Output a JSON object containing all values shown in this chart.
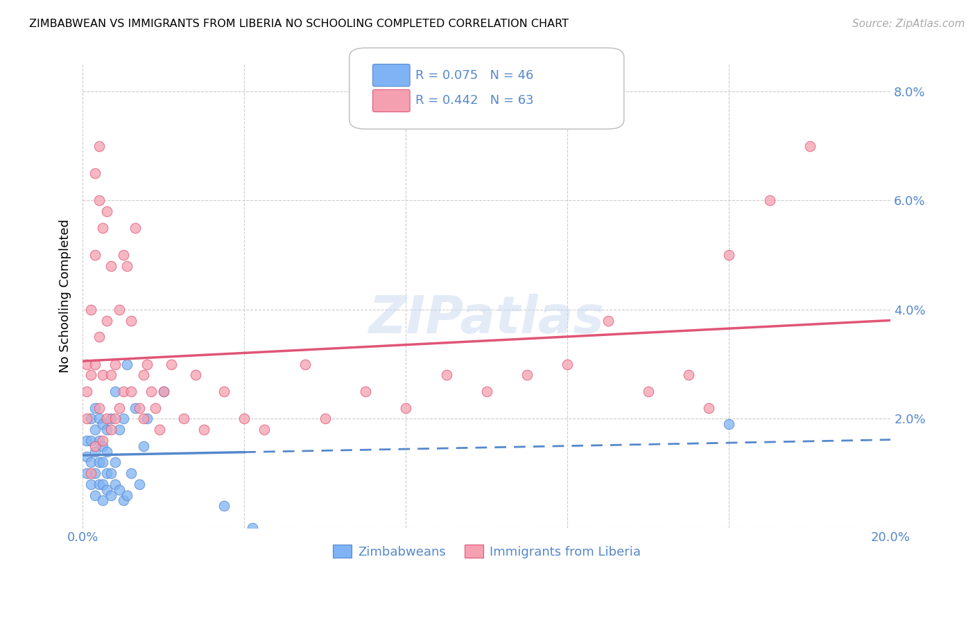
{
  "title": "ZIMBABWEAN VS IMMIGRANTS FROM LIBERIA NO SCHOOLING COMPLETED CORRELATION CHART",
  "source": "Source: ZipAtlas.com",
  "ylabel": "No Schooling Completed",
  "xlim": [
    0.0,
    0.2
  ],
  "ylim": [
    0.0,
    0.085
  ],
  "xtick_vals": [
    0.0,
    0.04,
    0.08,
    0.12,
    0.16,
    0.2
  ],
  "xticklabels": [
    "0.0%",
    "",
    "",
    "",
    "",
    "20.0%"
  ],
  "ytick_vals": [
    0.0,
    0.02,
    0.04,
    0.06,
    0.08
  ],
  "yticklabels": [
    "",
    "2.0%",
    "4.0%",
    "6.0%",
    "8.0%"
  ],
  "legend_r1": "0.075",
  "legend_n1": "46",
  "legend_r2": "0.442",
  "legend_n2": "63",
  "color_zimbabwe": "#7fb3f5",
  "color_liberia": "#f5a0b0",
  "color_trendline_zimbabwe": "#5588cc",
  "color_trendline_liberia": "#e05575",
  "watermark_text": "ZIPatlas",
  "background_color": "#ffffff",
  "grid_color": "#cccccc",
  "tick_color": "#5588cc",
  "zimbabwe_x": [
    0.001,
    0.001,
    0.001,
    0.002,
    0.002,
    0.002,
    0.002,
    0.003,
    0.003,
    0.003,
    0.003,
    0.003,
    0.004,
    0.004,
    0.004,
    0.004,
    0.005,
    0.005,
    0.005,
    0.005,
    0.005,
    0.006,
    0.006,
    0.006,
    0.006,
    0.007,
    0.007,
    0.007,
    0.008,
    0.008,
    0.008,
    0.009,
    0.009,
    0.01,
    0.01,
    0.011,
    0.011,
    0.012,
    0.013,
    0.014,
    0.015,
    0.016,
    0.02,
    0.035,
    0.042,
    0.16
  ],
  "zimbabwe_y": [
    0.01,
    0.013,
    0.016,
    0.008,
    0.012,
    0.016,
    0.02,
    0.006,
    0.01,
    0.014,
    0.018,
    0.022,
    0.008,
    0.012,
    0.016,
    0.02,
    0.005,
    0.008,
    0.012,
    0.015,
    0.019,
    0.007,
    0.01,
    0.014,
    0.018,
    0.006,
    0.01,
    0.02,
    0.008,
    0.012,
    0.025,
    0.007,
    0.018,
    0.005,
    0.02,
    0.006,
    0.03,
    0.01,
    0.022,
    0.008,
    0.015,
    0.02,
    0.025,
    0.004,
    0.0,
    0.019
  ],
  "liberia_x": [
    0.001,
    0.001,
    0.001,
    0.002,
    0.002,
    0.002,
    0.003,
    0.003,
    0.003,
    0.003,
    0.004,
    0.004,
    0.004,
    0.004,
    0.005,
    0.005,
    0.005,
    0.006,
    0.006,
    0.006,
    0.007,
    0.007,
    0.007,
    0.008,
    0.008,
    0.009,
    0.009,
    0.01,
    0.01,
    0.011,
    0.012,
    0.012,
    0.013,
    0.014,
    0.015,
    0.015,
    0.016,
    0.017,
    0.018,
    0.019,
    0.02,
    0.022,
    0.025,
    0.028,
    0.03,
    0.035,
    0.04,
    0.045,
    0.055,
    0.06,
    0.07,
    0.08,
    0.09,
    0.1,
    0.11,
    0.12,
    0.13,
    0.14,
    0.15,
    0.155,
    0.16,
    0.17,
    0.18
  ],
  "liberia_y": [
    0.02,
    0.025,
    0.03,
    0.01,
    0.028,
    0.04,
    0.015,
    0.03,
    0.05,
    0.065,
    0.022,
    0.035,
    0.06,
    0.07,
    0.016,
    0.028,
    0.055,
    0.02,
    0.038,
    0.058,
    0.018,
    0.028,
    0.048,
    0.02,
    0.03,
    0.022,
    0.04,
    0.025,
    0.05,
    0.048,
    0.025,
    0.038,
    0.055,
    0.022,
    0.02,
    0.028,
    0.03,
    0.025,
    0.022,
    0.018,
    0.025,
    0.03,
    0.02,
    0.028,
    0.018,
    0.025,
    0.02,
    0.018,
    0.03,
    0.02,
    0.025,
    0.022,
    0.028,
    0.025,
    0.028,
    0.03,
    0.038,
    0.025,
    0.028,
    0.022,
    0.05,
    0.06,
    0.07
  ]
}
